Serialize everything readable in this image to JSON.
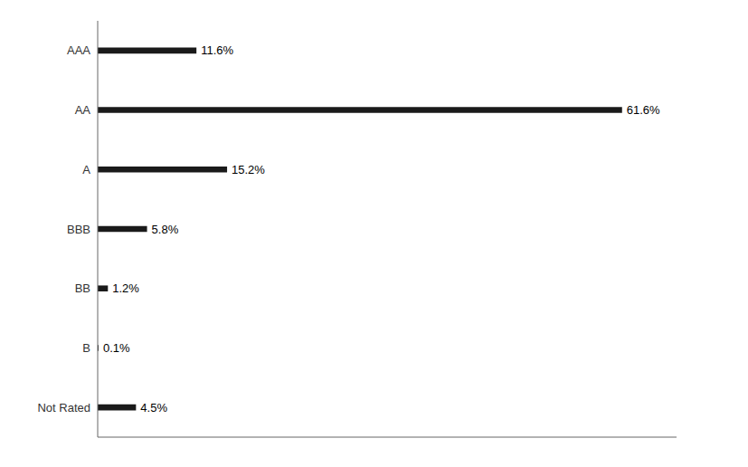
{
  "chart_data": {
    "type": "bar",
    "orientation": "horizontal",
    "categories": [
      "AAA",
      "AA",
      "A",
      "BBB",
      "BB",
      "B",
      "Not Rated"
    ],
    "values": [
      11.6,
      61.6,
      15.2,
      5.8,
      1.2,
      0.1,
      4.5
    ],
    "value_labels": [
      "11.6%",
      "61.6%",
      "15.2%",
      "5.8%",
      "1.2%",
      "0.1%",
      "4.5%"
    ],
    "data_labels": true,
    "color": "#1a1a1a",
    "xlim": [
      0,
      68
    ],
    "tick_labels": "y",
    "grid": false
  }
}
